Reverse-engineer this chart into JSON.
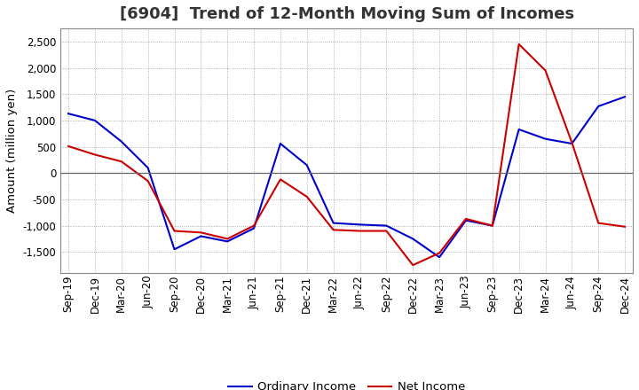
{
  "title": "[6904]  Trend of 12-Month Moving Sum of Incomes",
  "ylabel": "Amount (million yen)",
  "background_color": "#ffffff",
  "plot_bg_color": "#ffffff",
  "grid_color": "#999999",
  "x_labels": [
    "Sep-19",
    "Dec-19",
    "Mar-20",
    "Jun-20",
    "Sep-20",
    "Dec-20",
    "Mar-21",
    "Jun-21",
    "Sep-21",
    "Dec-21",
    "Mar-22",
    "Jun-22",
    "Sep-22",
    "Dec-22",
    "Mar-23",
    "Jun-23",
    "Sep-23",
    "Dec-23",
    "Mar-24",
    "Jun-24",
    "Sep-24",
    "Dec-24"
  ],
  "ordinary_income": [
    1130,
    1000,
    600,
    100,
    -1450,
    -1200,
    -1300,
    -1050,
    560,
    150,
    -950,
    -980,
    -1000,
    -1250,
    -1600,
    -900,
    -1000,
    830,
    650,
    560,
    1270,
    1450
  ],
  "net_income": [
    510,
    350,
    220,
    -150,
    -1100,
    -1130,
    -1250,
    -1000,
    -120,
    -450,
    -1080,
    -1100,
    -1100,
    -1750,
    -1520,
    -870,
    -1000,
    2450,
    1950,
    580,
    -950,
    -1020
  ],
  "ordinary_income_color": "#0000cc",
  "net_income_color": "#cc0000",
  "ylim": [
    -1900,
    2750
  ],
  "yticks": [
    -1500,
    -1000,
    -500,
    0,
    500,
    1000,
    1500,
    2000,
    2500
  ],
  "legend_ordinary": "Ordinary Income",
  "legend_net": "Net Income",
  "title_fontsize": 13,
  "axis_fontsize": 8.5,
  "legend_fontsize": 9.5
}
